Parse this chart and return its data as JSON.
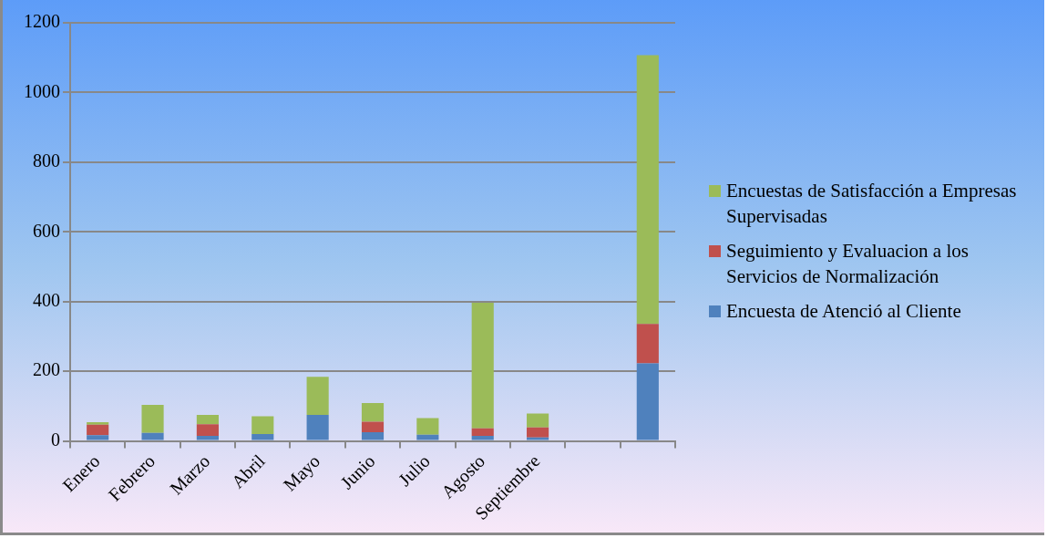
{
  "chart_data": {
    "type": "bar",
    "stacked": true,
    "categories": [
      "Enero",
      "Febrero",
      "Marzo",
      "Abril",
      "Mayo",
      "Junio",
      "Julio",
      "Agosto",
      "Septiembre",
      null,
      null
    ],
    "series": [
      {
        "name": "Encuesta de Atenció al Cliente",
        "color": "#4f81bd",
        "values": [
          17,
          23,
          15,
          20,
          75,
          25,
          18,
          15,
          10,
          null,
          223
        ]
      },
      {
        "name": "Seguimiento y Evaluacion a los Servicios de Normalización",
        "color": "#c0504d",
        "values": [
          30,
          0,
          33,
          0,
          0,
          30,
          0,
          21,
          29,
          null,
          113
        ]
      },
      {
        "name": "Encuestas de Satisfacción a Empresas Supervisadas",
        "color": "#9bbb59",
        "values": [
          7,
          81,
          27,
          51,
          109,
          54,
          48,
          361,
          40,
          null,
          771
        ]
      }
    ],
    "ylim": [
      0,
      1200
    ],
    "yticks": [
      0,
      200,
      400,
      600,
      800,
      1000,
      1200
    ],
    "grid": "y",
    "legend": "right"
  }
}
